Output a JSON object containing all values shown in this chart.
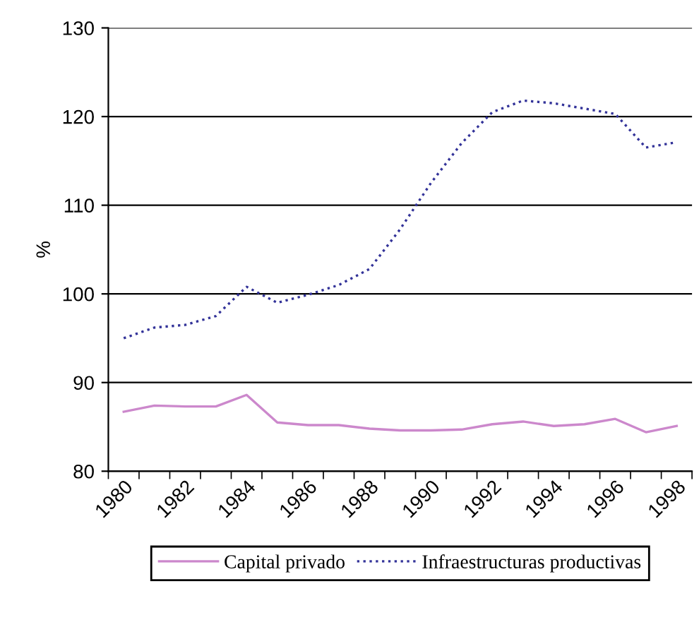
{
  "chart_data": {
    "type": "line",
    "ylabel": "%",
    "categories": [
      "1980",
      null,
      "1982",
      null,
      "1984",
      null,
      "1986",
      null,
      "1988",
      null,
      "1990",
      null,
      "1992",
      null,
      "1994",
      null,
      "1996",
      null,
      "1998"
    ],
    "series": [
      {
        "name": "Capital privado",
        "color": "#cc88cc",
        "line_style": "solid",
        "values": [
          86.7,
          87.4,
          87.3,
          87.3,
          88.6,
          85.5,
          85.2,
          85.2,
          84.8,
          84.6,
          84.6,
          84.7,
          85.3,
          85.6,
          85.1,
          85.3,
          85.9,
          84.4,
          85.1
        ]
      },
      {
        "name": "Infraestructuras productivas",
        "color": "#333399",
        "line_style": "dotted",
        "values": [
          95.0,
          96.2,
          96.5,
          97.5,
          100.8,
          99.0,
          99.9,
          101.0,
          102.8,
          107.3,
          112.5,
          117.0,
          120.5,
          121.8,
          121.5,
          120.9,
          120.3,
          116.5,
          117.1
        ]
      }
    ],
    "ylim": [
      80,
      130
    ],
    "yticks": [
      80,
      90,
      100,
      110,
      120,
      130
    ],
    "grid": "y",
    "legend": "bottom"
  }
}
